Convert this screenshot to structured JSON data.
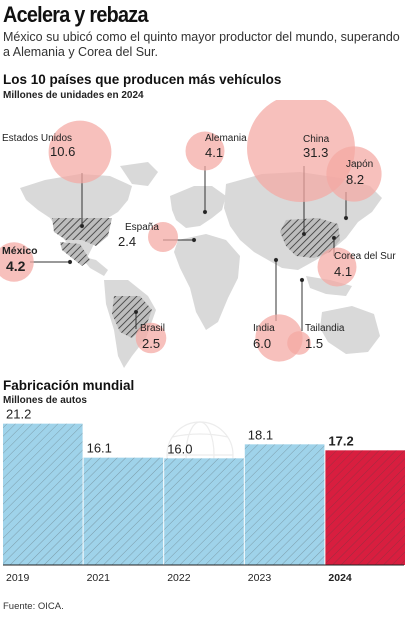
{
  "header": {
    "title": "Acelera y rebaza",
    "subtitle": "México su ubicó como el quinto mayor productor del mundo, superando a Alemania y Corea del Sur."
  },
  "map_section": {
    "title": "Los 10 países que producen más vehículos",
    "subtitle": "Millones de unidades en 2024"
  },
  "bar_section": {
    "title": "Fabricación mundial",
    "subtitle": "Millones de autos"
  },
  "source": "Fuente: OICA.",
  "colors": {
    "bubble": "#f4a7a2",
    "land": "#d9d9d9",
    "bar": "#9fd3ea",
    "bar_highlight": "#d81e3f",
    "hatch_line": "#555555"
  },
  "chart_data": [
    {
      "type": "scatter",
      "title": "Los 10 países que producen más vehículos",
      "subtitle": "Millones de unidades en 2024",
      "series": [
        {
          "country": "Estados Unidos",
          "value": 10.6
        },
        {
          "country": "Alemania",
          "value": 4.1
        },
        {
          "country": "China",
          "value": 31.3
        },
        {
          "country": "Japón",
          "value": 8.2
        },
        {
          "country": "España",
          "value": 2.4
        },
        {
          "country": "México",
          "value": 4.2,
          "highlight": true
        },
        {
          "country": "Corea del Sur",
          "value": 4.1
        },
        {
          "country": "Brasil",
          "value": 2.5
        },
        {
          "country": "India",
          "value": 6.0
        },
        {
          "country": "Tailandia",
          "value": 1.5
        }
      ]
    },
    {
      "type": "bar",
      "title": "Fabricación mundial",
      "subtitle": "Millones de autos",
      "categories": [
        "2019",
        "2021",
        "2022",
        "2023",
        "2024"
      ],
      "values": [
        21.2,
        16.1,
        16.0,
        18.1,
        17.2
      ],
      "value_labels": [
        "21.2",
        "16.1",
        "16.0",
        "18.1",
        "17.2"
      ],
      "highlight": "2024",
      "ylim": [
        0,
        24
      ]
    }
  ]
}
